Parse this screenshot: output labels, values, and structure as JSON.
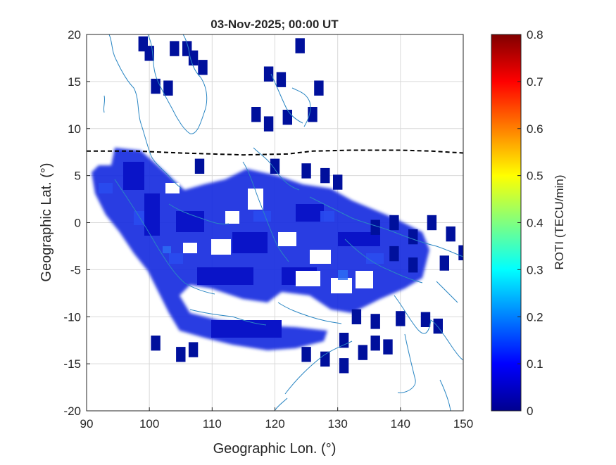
{
  "chart_data": {
    "type": "heatmap",
    "title": "03-Nov-2025; 00:00 UT",
    "xlabel": "Geographic Lon. (°)",
    "ylabel": "Geographic Lat. (°)",
    "xlim": [
      90,
      150
    ],
    "ylim": [
      -20,
      20
    ],
    "xticks": [
      90,
      100,
      110,
      120,
      130,
      140,
      150
    ],
    "yticks": [
      -20,
      -15,
      -10,
      -5,
      0,
      5,
      10,
      15,
      20
    ],
    "grid": true,
    "colorbar": {
      "label": "ROTI (TECU/min)",
      "range": [
        0,
        0.8
      ],
      "ticks": [
        0,
        0.1,
        0.2,
        0.3,
        0.4,
        0.5,
        0.6,
        0.7,
        0.8
      ],
      "colormap": "jet"
    },
    "dashed_line": [
      [
        90,
        7.6
      ],
      [
        98,
        7.6
      ],
      [
        105,
        7.4
      ],
      [
        115,
        7.2
      ],
      [
        122,
        7.3
      ],
      [
        126,
        7.6
      ],
      [
        132,
        7.7
      ],
      [
        140,
        7.7
      ],
      [
        145,
        7.6
      ],
      [
        150,
        7.4
      ]
    ],
    "coastline_color": "#2a86c3",
    "isolated_cells": [
      [
        99,
        19
      ],
      [
        100,
        18
      ],
      [
        104,
        18.5
      ],
      [
        106,
        18.5
      ],
      [
        107,
        17.5
      ],
      [
        108.5,
        16.5
      ],
      [
        101,
        14.5
      ],
      [
        103,
        14.3
      ],
      [
        119,
        15.8
      ],
      [
        121,
        15.2
      ],
      [
        124,
        18.8
      ],
      [
        127,
        14.3
      ],
      [
        117,
        11.5
      ],
      [
        119,
        10.5
      ],
      [
        122,
        11.2
      ],
      [
        126,
        11.5
      ],
      [
        108,
        6
      ],
      [
        120,
        6
      ],
      [
        125,
        5.5
      ],
      [
        128,
        5
      ],
      [
        130,
        4.3
      ],
      [
        136,
        -0.5
      ],
      [
        139,
        0
      ],
      [
        142,
        -1.5
      ],
      [
        145,
        0
      ],
      [
        148,
        -1.2
      ],
      [
        150,
        -3.2
      ],
      [
        147,
        -4.3
      ],
      [
        142,
        -4.5
      ],
      [
        139,
        -3.3
      ],
      [
        133,
        -10
      ],
      [
        136,
        -10.5
      ],
      [
        140,
        -10.2
      ],
      [
        144,
        -10.3
      ],
      [
        146,
        -11
      ],
      [
        131,
        -12.5
      ],
      [
        134,
        -13.8
      ],
      [
        136,
        -12.8
      ],
      [
        138,
        -13.2
      ],
      [
        107,
        -13.5
      ],
      [
        105,
        -14
      ],
      [
        101,
        -12.8
      ],
      [
        125,
        -14
      ],
      [
        128,
        -14.5
      ],
      [
        131,
        -15.2
      ]
    ]
  }
}
